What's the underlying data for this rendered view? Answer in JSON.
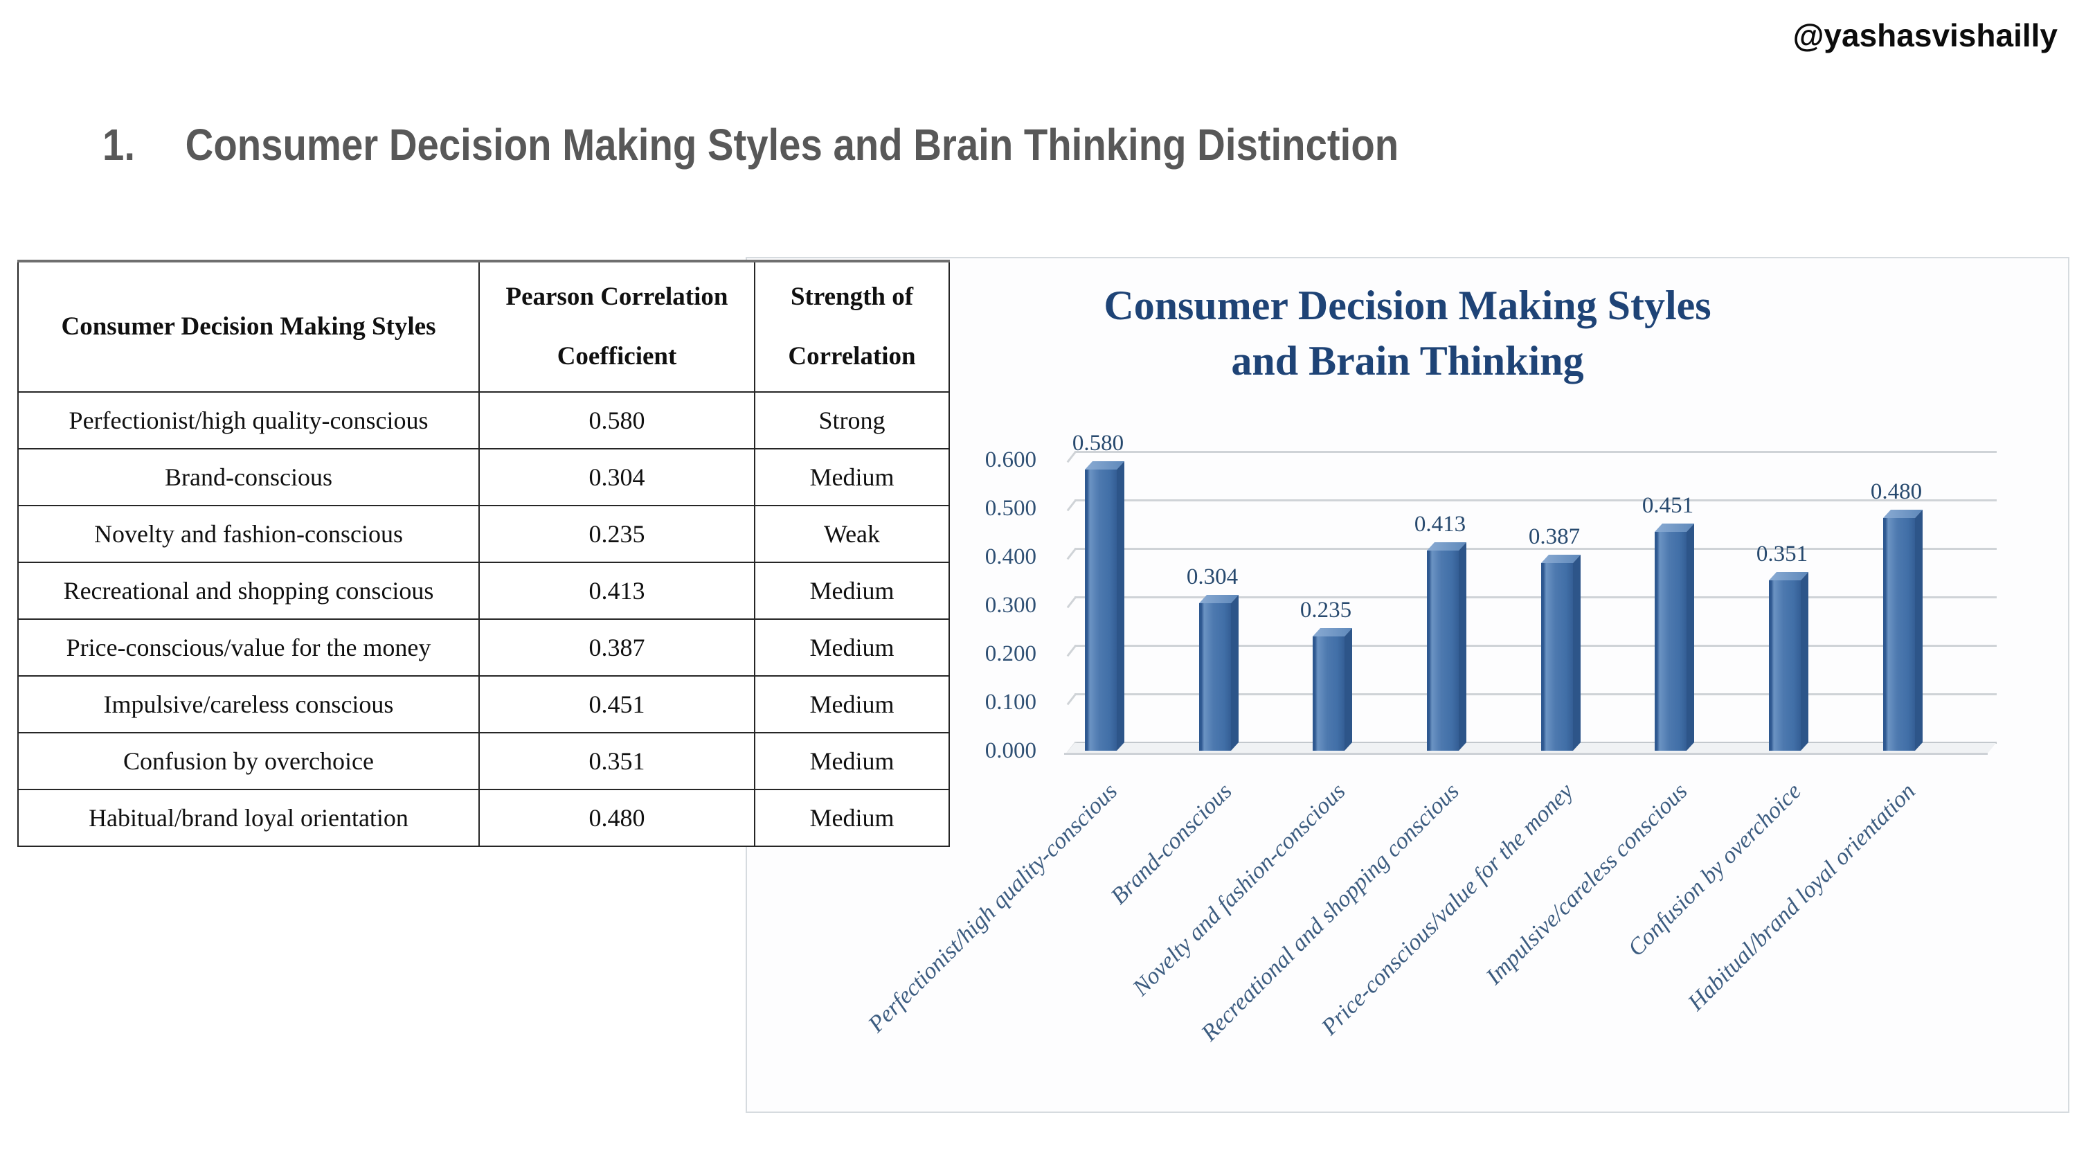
{
  "page": {
    "handle": "@yashasvishailly",
    "heading": {
      "number": "1.",
      "text": "Consumer Decision Making Styles and Brain Thinking Distinction"
    }
  },
  "table": {
    "headers": [
      {
        "lines": [
          "Consumer Decision Making Styles"
        ]
      },
      {
        "lines": [
          "Pearson Correlation",
          "Coefficient"
        ]
      },
      {
        "lines": [
          "Strength of",
          "Correlation"
        ]
      }
    ],
    "rows": [
      {
        "style": "Perfectionist/high quality-conscious",
        "coefficient": "0.580",
        "strength": "Strong"
      },
      {
        "style": "Brand-conscious",
        "coefficient": "0.304",
        "strength": "Medium"
      },
      {
        "style": "Novelty and fashion-conscious",
        "coefficient": "0.235",
        "strength": "Weak"
      },
      {
        "style": "Recreational and shopping conscious",
        "coefficient": "0.413",
        "strength": "Medium"
      },
      {
        "style": "Price-conscious/value for the money",
        "coefficient": "0.387",
        "strength": "Medium"
      },
      {
        "style": "Impulsive/careless conscious",
        "coefficient": "0.451",
        "strength": "Medium"
      },
      {
        "style": "Confusion by overchoice",
        "coefficient": "0.351",
        "strength": "Medium"
      },
      {
        "style": "Habitual/brand loyal orientation",
        "coefficient": "0.480",
        "strength": "Medium"
      }
    ]
  },
  "chart_data": {
    "type": "bar",
    "title": "Consumer Decision Making Styles and Brain Thinking",
    "title_lines": [
      "Consumer Decision Making Styles",
      "and Brain Thinking"
    ],
    "categories": [
      "Perfectionist/high quality-conscious",
      "Brand-conscious",
      "Novelty and fashion-conscious",
      "Recreational and shopping conscious",
      "Price-conscious/value for the money",
      "Impulsive/careless conscious",
      "Confusion by overchoice",
      "Habitual/brand loyal orientation"
    ],
    "values": [
      0.58,
      0.304,
      0.235,
      0.413,
      0.387,
      0.451,
      0.351,
      0.48
    ],
    "value_labels": [
      "0.580",
      "0.304",
      "0.235",
      "0.413",
      "0.387",
      "0.451",
      "0.351",
      "0.480"
    ],
    "ytick_labels": [
      "0.000",
      "0.100",
      "0.200",
      "0.300",
      "0.400",
      "0.500",
      "0.600"
    ],
    "ylim": [
      0,
      0.6
    ],
    "grid": true,
    "legend": false,
    "style_3d": true,
    "xlabel": "",
    "ylabel": ""
  },
  "colors": {
    "title_blue": "#1e4376",
    "axis_label_blue": "#2f5074",
    "category_label_blue": "#3c5c80",
    "bar_front": "#4273aa",
    "bar_side_dark": "#2d5589",
    "bar_top_light": "#7ba1cd",
    "gridline_gray": "#cfd3d7",
    "heading_gray": "#585858",
    "table_border": "#262626"
  }
}
